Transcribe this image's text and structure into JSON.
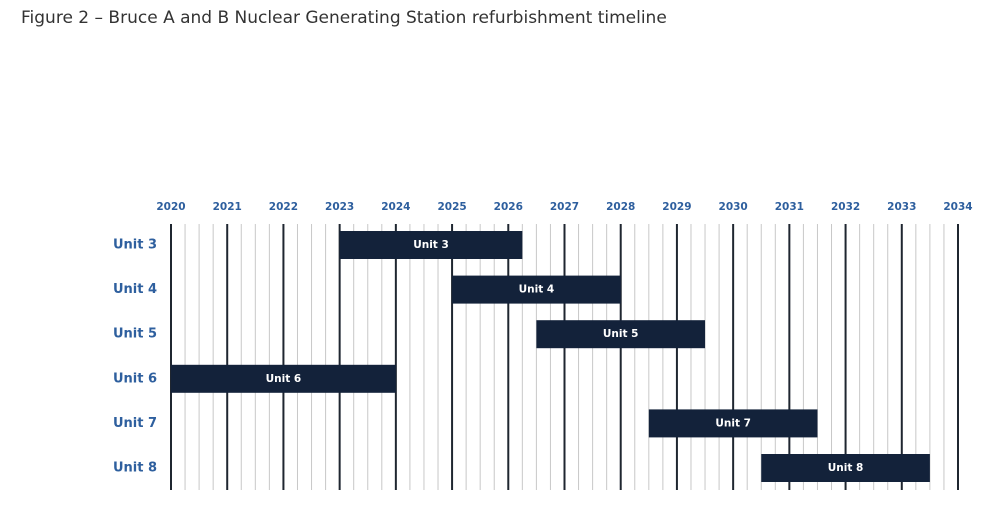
{
  "caption": "Figure 2 – Bruce A and B Nuclear Generating Station refurbishment timeline",
  "colors": {
    "bar": "#13223a",
    "bar_text": "#ffffff",
    "axis_text": "#2e5f9e",
    "major_grid": "#1f2630",
    "minor_grid": "#c8c8c8"
  },
  "chart_data": {
    "type": "gantt",
    "x": {
      "min": 2020,
      "max": 2034,
      "ticks": [
        "2020",
        "2021",
        "2022",
        "2023",
        "2024",
        "2025",
        "2026",
        "2027",
        "2028",
        "2029",
        "2030",
        "2031",
        "2032",
        "2033",
        "2034"
      ],
      "position": "top",
      "minor_ticks_per_year": 4
    },
    "categories": [
      "Unit 3",
      "Unit 4",
      "Unit 5",
      "Unit 6",
      "Unit 7",
      "Unit 8"
    ],
    "series": [
      {
        "category": "Unit 3",
        "label": "Unit 3",
        "start": 2023.0,
        "end": 2026.25
      },
      {
        "category": "Unit 4",
        "label": "Unit 4",
        "start": 2025.0,
        "end": 2028.0
      },
      {
        "category": "Unit 5",
        "label": "Unit 5",
        "start": 2026.5,
        "end": 2029.5
      },
      {
        "category": "Unit 6",
        "label": "Unit 6",
        "start": 2020.0,
        "end": 2024.0
      },
      {
        "category": "Unit 7",
        "label": "Unit 7",
        "start": 2028.5,
        "end": 2031.5
      },
      {
        "category": "Unit 8",
        "label": "Unit 8",
        "start": 2030.5,
        "end": 2033.5
      }
    ],
    "grid": true,
    "legend": "none"
  }
}
